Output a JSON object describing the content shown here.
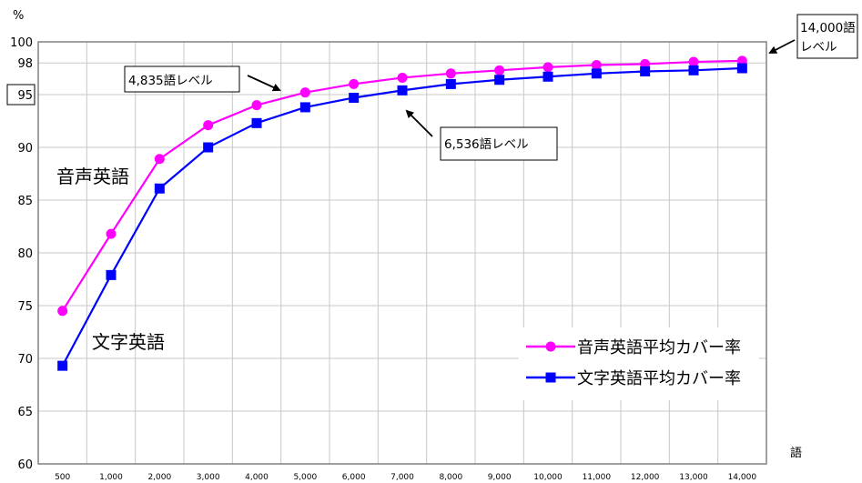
{
  "chart_data": {
    "type": "line",
    "y_unit": "%",
    "x_unit": "語",
    "x": [
      "500",
      "1,000",
      "2,000",
      "3,000",
      "4,000",
      "5,000",
      "6,000",
      "7,000",
      "8,000",
      "9,000",
      "10,000",
      "11,000",
      "12,000",
      "13,000",
      "14,000"
    ],
    "ylim": [
      60,
      100
    ],
    "y_ticks": [
      60,
      65,
      70,
      75,
      80,
      85,
      90,
      95,
      98,
      100
    ],
    "boxed_ticks": [
      95
    ],
    "grid": true,
    "legend_position": "bottom-right",
    "series": [
      {
        "name": "音声英語平均カバー率",
        "color": "#ff00ff",
        "marker": "circle",
        "values": [
          74.5,
          81.8,
          88.9,
          92.1,
          94.0,
          95.2,
          96.0,
          96.6,
          97.0,
          97.3,
          97.6,
          97.8,
          97.9,
          98.1,
          98.2
        ]
      },
      {
        "name": "文字英語平均カバー率",
        "color": "#0000ff",
        "marker": "square",
        "values": [
          69.3,
          77.9,
          86.1,
          90.0,
          92.3,
          93.8,
          94.7,
          95.4,
          96.0,
          96.4,
          96.7,
          97.0,
          97.2,
          97.3,
          97.5
        ]
      }
    ],
    "annotations": {
      "spoken_label": "音声英語",
      "written_label": "文字英語",
      "callout_spoken": "4,835語レベル",
      "callout_written": "6,536語レベル",
      "callout_top_line1": "14,000語",
      "callout_top_line2": "レベル"
    }
  }
}
